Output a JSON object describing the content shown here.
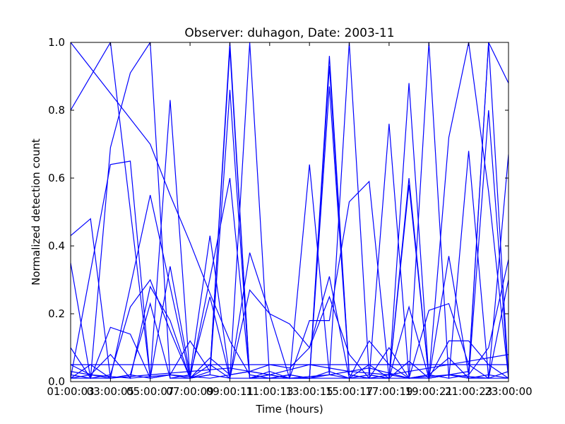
{
  "chart_data": {
    "type": "line",
    "title": "Observer: duhagon, Date: 2003-11",
    "xlabel": "Time (hours)",
    "ylabel": "Normalized detection count",
    "xlim": [
      1,
      23
    ],
    "ylim": [
      0,
      1.0
    ],
    "x_tick_values": [
      1,
      3,
      5,
      7,
      9,
      11,
      13,
      15,
      17,
      19,
      21,
      23
    ],
    "x_tick_labels": [
      "01:00:03",
      "03:00:05",
      "05:00:07",
      "07:00:09",
      "09:00:11",
      "11:00:13",
      "13:00:15",
      "15:00:17",
      "17:00:19",
      "19:00:21",
      "21:00:23",
      "23:00:00"
    ],
    "y_ticks": [
      0.0,
      0.2,
      0.4,
      0.6,
      0.8,
      1.0
    ],
    "y_tick_labels": [
      "0.0",
      "0.2",
      "0.4",
      "0.6",
      "0.8",
      "1.0"
    ],
    "grid": false,
    "color": "#0000ff",
    "series": [
      {
        "x": [
          1,
          3,
          5,
          6,
          7,
          8,
          9,
          10,
          11,
          12,
          13,
          14,
          15,
          16,
          17,
          18,
          19,
          20,
          21,
          22,
          23
        ],
        "y": [
          0.8,
          1.0,
          0.01,
          0.02,
          0.12,
          0.03,
          1.0,
          0.01,
          0.02,
          0.01,
          0.01,
          0.02,
          1.0,
          0.02,
          0.01,
          0.88,
          0.01,
          0.02,
          0.03,
          1.0,
          0.88
        ]
      },
      {
        "x": [
          1,
          2,
          3,
          4,
          5,
          6,
          7,
          8,
          9,
          10,
          11,
          12,
          13,
          14,
          15,
          16,
          17,
          18,
          19,
          20,
          21,
          22,
          23
        ],
        "y": [
          0.43,
          0.48,
          0.01,
          0.02,
          0.01,
          0.83,
          0.01,
          0.02,
          0.01,
          1.0,
          0.01,
          0.02,
          0.01,
          0.96,
          0.02,
          0.01,
          0.02,
          0.01,
          1.0,
          0.01,
          0.02,
          1.0,
          0.01
        ]
      },
      {
        "x": [
          1,
          3,
          4,
          5,
          6,
          7,
          8,
          9,
          10,
          11,
          12,
          13,
          14,
          15,
          16,
          17,
          18,
          19,
          20,
          21,
          22,
          23
        ],
        "y": [
          0.01,
          0.64,
          0.65,
          0.01,
          0.02,
          0.01,
          0.03,
          0.98,
          0.01,
          0.02,
          0.01,
          0.01,
          0.93,
          0.02,
          0.01,
          0.76,
          0.01,
          0.02,
          0.01,
          0.68,
          0.01,
          0.67
        ]
      },
      {
        "x": [
          1,
          2,
          3,
          4,
          5,
          6,
          7,
          8,
          9,
          10,
          11,
          12,
          13,
          14,
          15,
          16,
          17,
          18,
          19,
          20,
          21,
          22,
          23
        ],
        "y": [
          0.02,
          0.01,
          0.69,
          0.91,
          1.0,
          0.01,
          0.01,
          0.05,
          0.01,
          0.01,
          0.01,
          0.01,
          0.01,
          0.01,
          0.01,
          0.01,
          0.01,
          0.01,
          0.01,
          0.72,
          1.0,
          0.56,
          0.01
        ]
      },
      {
        "x": [
          1,
          2,
          3,
          4,
          5,
          6,
          7,
          8,
          9,
          10,
          11,
          12,
          13,
          14,
          15,
          16,
          17,
          18,
          19,
          20,
          21,
          22,
          23
        ],
        "y": [
          0.35,
          0.01,
          0.02,
          0.22,
          0.3,
          0.15,
          0.01,
          0.02,
          0.86,
          0.01,
          0.03,
          0.01,
          0.64,
          0.02,
          0.01,
          0.05,
          0.01,
          0.6,
          0.01,
          0.02,
          0.01,
          0.8,
          0.01
        ]
      },
      {
        "x": [
          1,
          3,
          5,
          7,
          9,
          10,
          11,
          13,
          14,
          15,
          16,
          17,
          18,
          19,
          20,
          21,
          22,
          23
        ],
        "y": [
          0.01,
          0.01,
          0.55,
          0.01,
          0.6,
          0.01,
          0.01,
          0.01,
          0.87,
          0.02,
          0.01,
          0.01,
          0.58,
          0.01,
          0.02,
          0.01,
          0.01,
          0.01
        ]
      },
      {
        "x": [
          1,
          3,
          5,
          6,
          7,
          8,
          9,
          10,
          11,
          12,
          13,
          14,
          15,
          16,
          17,
          18,
          19,
          20,
          21,
          22,
          23
        ],
        "y": [
          1.0,
          0.85,
          0.7,
          0.55,
          0.41,
          0.26,
          0.12,
          0.02,
          0.01,
          0.02,
          0.01,
          0.03,
          0.01,
          0.12,
          0.05,
          0.01,
          0.02,
          0.07,
          0.01,
          0.02,
          0.01
        ]
      },
      {
        "x": [
          1,
          2,
          3,
          4,
          5,
          6,
          7,
          8,
          9,
          10,
          11,
          12,
          13,
          14,
          15,
          16,
          17,
          18,
          19,
          20,
          21,
          22,
          23
        ],
        "y": [
          0.1,
          0.01,
          0.16,
          0.14,
          0.01,
          0.34,
          0.02,
          0.43,
          0.01,
          0.38,
          0.2,
          0.01,
          0.18,
          0.18,
          0.53,
          0.59,
          0.01,
          0.22,
          0.01,
          0.12,
          0.12,
          0.05,
          0.01
        ]
      },
      {
        "x": [
          1,
          2,
          3,
          4,
          5,
          6,
          7,
          8,
          9,
          10,
          11,
          12,
          13,
          14,
          15,
          16,
          17,
          18,
          19,
          20,
          21,
          22,
          23
        ],
        "y": [
          0.01,
          0.05,
          0.01,
          0.02,
          0.23,
          0.01,
          0.02,
          0.25,
          0.01,
          0.27,
          0.2,
          0.17,
          0.1,
          0.25,
          0.08,
          0.01,
          0.1,
          0.01,
          0.21,
          0.23,
          0.05,
          0.01,
          0.3
        ]
      },
      {
        "x": [
          1,
          2,
          3,
          4,
          5,
          6,
          7,
          8,
          9,
          10,
          11,
          12,
          13,
          14,
          15,
          16,
          17,
          18,
          19,
          20,
          21,
          22,
          23
        ],
        "y": [
          0.05,
          0.02,
          0.08,
          0.01,
          0.28,
          0.18,
          0.01,
          0.07,
          0.02,
          0.03,
          0.05,
          0.04,
          0.1,
          0.31,
          0.01,
          0.02,
          0.01,
          0.06,
          0.01,
          0.37,
          0.02,
          0.1,
          0.36
        ]
      },
      {
        "x": [
          1,
          23
        ],
        "y": [
          0.05,
          0.05
        ]
      },
      {
        "x": [
          1,
          3,
          5,
          7,
          9,
          11,
          13,
          15,
          17,
          19,
          21,
          23
        ],
        "y": [
          0.03,
          0.01,
          0.02,
          0.03,
          0.04,
          0.02,
          0.05,
          0.03,
          0.02,
          0.04,
          0.06,
          0.08
        ]
      },
      {
        "x": [
          1,
          2,
          4,
          6,
          8,
          10,
          12,
          14,
          16,
          18,
          20,
          22,
          23
        ],
        "y": [
          0.01,
          0.02,
          0.01,
          0.02,
          0.01,
          0.03,
          0.01,
          0.02,
          0.04,
          0.01,
          0.02,
          0.01,
          0.03
        ]
      }
    ]
  }
}
